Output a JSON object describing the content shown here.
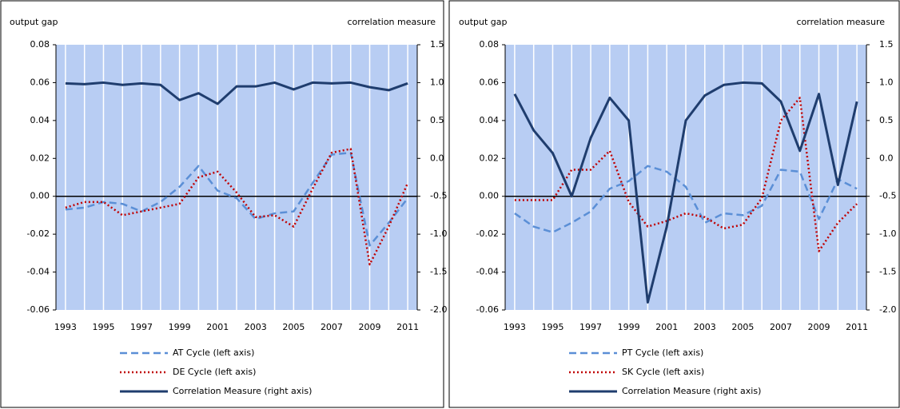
{
  "chart_data": [
    {
      "type": "line",
      "y_label": "output gap",
      "y2_label": "correlation measure",
      "x": [
        1993,
        1994,
        1995,
        1996,
        1997,
        1998,
        1999,
        2000,
        2001,
        2002,
        2003,
        2004,
        2005,
        2006,
        2007,
        2008,
        2009,
        2010,
        2011
      ],
      "xlim": [
        1992.5,
        2011.5
      ],
      "xticks": [
        1993,
        1995,
        1997,
        1999,
        2001,
        2003,
        2005,
        2007,
        2009,
        2011
      ],
      "ylim": [
        -0.06,
        0.08
      ],
      "yticks": [
        -0.06,
        -0.04,
        -0.02,
        {
          "value": 0,
          "label": "0.00"
        },
        0.02,
        0.04,
        0.06,
        0.08
      ],
      "y2lim": [
        -2,
        1.5
      ],
      "y2ticks": [
        {
          "value": -2,
          "label": "-2.0"
        },
        -1.5,
        {
          "value": -1,
          "label": "-1.0"
        },
        -0.5,
        {
          "value": 0,
          "label": "0.0"
        },
        0.5,
        {
          "value": 1,
          "label": "1.0"
        },
        1.5
      ],
      "grid": true,
      "background": "#b8cdf3",
      "series": [
        {
          "name": "AT Cycle (left axis)",
          "color": "#5b8fd6",
          "style": "dashed",
          "values": [
            -0.007,
            -0.006,
            -0.003,
            -0.004,
            -0.008,
            -0.003,
            0.005,
            0.016,
            0.003,
            -0.001,
            -0.012,
            -0.009,
            -0.008,
            0.007,
            0.022,
            0.023,
            -0.026,
            -0.014,
            -0.001
          ]
        },
        {
          "name": "DE Cycle (left axis)",
          "color": "#c00000",
          "style": "dotted",
          "values": [
            -0.006,
            -0.003,
            -0.003,
            -0.01,
            -0.008,
            -0.006,
            -0.004,
            0.01,
            0.013,
            0.002,
            -0.011,
            -0.01,
            -0.016,
            0.004,
            0.023,
            0.025,
            -0.036,
            -0.016,
            0.007
          ]
        },
        {
          "name": "Correlation Measure (right axis)",
          "color": "#1f3d6e",
          "style": "solid",
          "axis": "y2",
          "values": [
            0.99,
            0.98,
            1.0,
            0.97,
            0.99,
            0.97,
            0.77,
            0.86,
            0.72,
            0.95,
            0.95,
            1.0,
            0.91,
            1.0,
            0.99,
            1.0,
            0.94,
            0.9,
            0.99
          ]
        }
      ]
    },
    {
      "type": "line",
      "y_label": "output gap",
      "y2_label": "correlation measure",
      "x": [
        1993,
        1994,
        1995,
        1996,
        1997,
        1998,
        1999,
        2000,
        2001,
        2002,
        2003,
        2004,
        2005,
        2006,
        2007,
        2008,
        2009,
        2010,
        2011
      ],
      "xlim": [
        1992.5,
        2011.5
      ],
      "xticks": [
        1993,
        1995,
        1997,
        1999,
        2001,
        2003,
        2005,
        2007,
        2009,
        2011
      ],
      "ylim": [
        -0.06,
        0.08
      ],
      "yticks": [
        -0.06,
        -0.04,
        -0.02,
        {
          "value": 0,
          "label": "0.00"
        },
        0.02,
        0.04,
        0.06,
        0.08
      ],
      "y2lim": [
        -2,
        1.5
      ],
      "y2ticks": [
        {
          "value": -2,
          "label": "-2.0"
        },
        -1.5,
        {
          "value": -1,
          "label": "-1.0"
        },
        -0.5,
        {
          "value": 0,
          "label": "0.0"
        },
        0.5,
        {
          "value": 1,
          "label": "1.0"
        },
        1.5
      ],
      "grid": true,
      "background": "#b8cdf3",
      "series": [
        {
          "name": "PT Cycle (left axis)",
          "color": "#5b8fd6",
          "style": "dashed",
          "values": [
            -0.009,
            -0.016,
            -0.019,
            -0.014,
            -0.008,
            0.004,
            0.008,
            0.016,
            0.013,
            0.005,
            -0.014,
            -0.009,
            -0.01,
            -0.005,
            0.014,
            0.013,
            -0.012,
            0.009,
            0.004
          ]
        },
        {
          "name": "SK Cycle (left axis)",
          "color": "#c00000",
          "style": "dotted",
          "values": [
            -0.002,
            -0.002,
            -0.002,
            0.014,
            0.014,
            0.024,
            -0.003,
            -0.016,
            -0.013,
            -0.009,
            -0.011,
            -0.017,
            -0.015,
            -0.001,
            0.04,
            0.052,
            -0.029,
            -0.014,
            -0.004
          ]
        },
        {
          "name": "Correlation Measure (right axis)",
          "color": "#1f3d6e",
          "style": "solid",
          "axis": "y2",
          "values": [
            0.85,
            0.37,
            0.07,
            -0.5,
            0.27,
            0.8,
            0.5,
            -1.9,
            -0.9,
            0.5,
            0.83,
            0.97,
            1.0,
            0.99,
            0.75,
            0.1,
            0.85,
            -0.35,
            0.75
          ]
        }
      ]
    }
  ]
}
